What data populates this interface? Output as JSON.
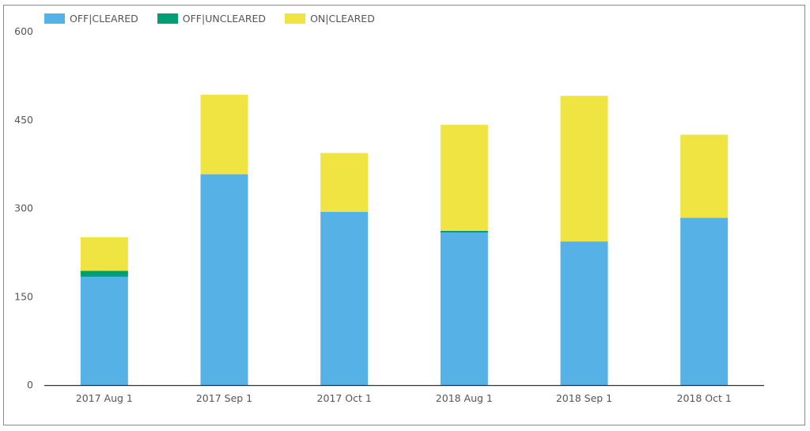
{
  "chart_data": {
    "type": "bar",
    "stacked": true,
    "categories": [
      "2017 Aug 1",
      "2017 Sep 1",
      "2017 Oct 1",
      "2018 Aug 1",
      "2018 Sep 1",
      "2018 Oct 1"
    ],
    "series": [
      {
        "name": "OFF|CLEARED",
        "color": "#56b1e6",
        "values": [
          184,
          358,
          294,
          259,
          244,
          284
        ]
      },
      {
        "name": "OFF|UNCLEARED",
        "color": "#009e73",
        "values": [
          10,
          0,
          0,
          3,
          0,
          0
        ]
      },
      {
        "name": "ON|CLEARED",
        "color": "#f0e442",
        "values": [
          57,
          135,
          100,
          180,
          247,
          141
        ]
      }
    ],
    "ylim": [
      0,
      600
    ],
    "yticks": [
      "0",
      "150",
      "300",
      "450",
      "600"
    ],
    "legend_position": "top-left",
    "grid": false
  }
}
